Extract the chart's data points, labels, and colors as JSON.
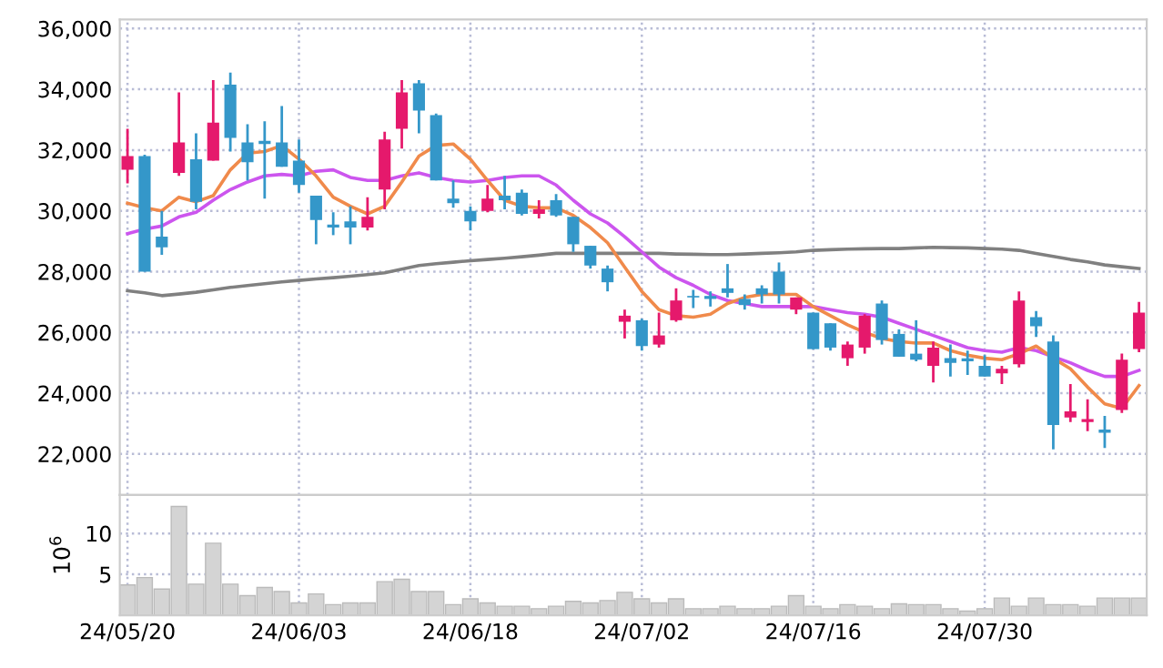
{
  "chart_data": [
    {
      "type": "candlestick",
      "categories": [
        null,
        null,
        null,
        null,
        null,
        null,
        null,
        null,
        null,
        null,
        null,
        null,
        null,
        null,
        null,
        null,
        null,
        null,
        null,
        null,
        null,
        null,
        null,
        null,
        null,
        null,
        null,
        null,
        null,
        null,
        null,
        null,
        null,
        null,
        null,
        null,
        null,
        null,
        null,
        null,
        null,
        null,
        null,
        null,
        null,
        null,
        null,
        null,
        null,
        null,
        null,
        null,
        null,
        null,
        null,
        null,
        null,
        null,
        null,
        null
      ],
      "ohlc": [
        [
          31350,
          32700,
          30900,
          31800
        ],
        [
          31800,
          31850,
          28000,
          28000
        ],
        [
          29150,
          30000,
          28550,
          28800
        ],
        [
          31250,
          33900,
          31150,
          32250
        ],
        [
          31700,
          32550,
          30050,
          30300
        ],
        [
          31650,
          34300,
          31650,
          32900
        ],
        [
          34150,
          34550,
          31950,
          32400
        ],
        [
          32250,
          32850,
          31000,
          31600
        ],
        [
          32250,
          32950,
          30400,
          32250
        ],
        [
          32250,
          33450,
          31450,
          31450
        ],
        [
          31650,
          32350,
          30600,
          30850
        ],
        [
          30500,
          30500,
          28900,
          29700
        ],
        [
          29500,
          29950,
          29200,
          29500
        ],
        [
          29650,
          30150,
          28900,
          29450
        ],
        [
          29450,
          30450,
          29350,
          29800
        ],
        [
          30700,
          32600,
          30050,
          32350
        ],
        [
          32700,
          34300,
          32050,
          33900
        ],
        [
          34200,
          34300,
          32550,
          33300
        ],
        [
          33150,
          33200,
          31000,
          31000
        ],
        [
          30400,
          31000,
          30100,
          30250
        ],
        [
          30000,
          30150,
          29350,
          29650
        ],
        [
          30000,
          30850,
          29950,
          30400
        ],
        [
          30500,
          31150,
          30050,
          30350
        ],
        [
          30600,
          30700,
          29850,
          29900
        ],
        [
          29900,
          30350,
          29750,
          30050
        ],
        [
          30350,
          30550,
          29800,
          29850
        ],
        [
          29800,
          29800,
          28650,
          28900
        ],
        [
          28850,
          28850,
          28100,
          28200
        ],
        [
          28100,
          28200,
          27350,
          27650
        ],
        [
          26350,
          26750,
          25800,
          26550
        ],
        [
          26400,
          26450,
          25400,
          25550
        ],
        [
          25600,
          26650,
          25500,
          25900
        ],
        [
          26400,
          27450,
          26350,
          27050
        ],
        [
          27200,
          27400,
          26800,
          27150
        ],
        [
          27200,
          27350,
          26850,
          27100
        ],
        [
          27450,
          28250,
          27150,
          27300
        ],
        [
          27100,
          27250,
          26750,
          26900
        ],
        [
          27450,
          27550,
          26950,
          27250
        ],
        [
          28000,
          28300,
          26950,
          27250
        ],
        [
          26750,
          27150,
          26600,
          27150
        ],
        [
          26650,
          26650,
          25450,
          25450
        ],
        [
          26300,
          26300,
          25400,
          25500
        ],
        [
          25150,
          25700,
          24900,
          25600
        ],
        [
          25500,
          26600,
          25300,
          26550
        ],
        [
          26950,
          27050,
          25600,
          25750
        ],
        [
          25950,
          26100,
          25200,
          25200
        ],
        [
          25300,
          26400,
          25050,
          25100
        ],
        [
          24900,
          25700,
          24350,
          25500
        ],
        [
          25150,
          25600,
          24550,
          25000
        ],
        [
          25100,
          25400,
          24600,
          25100
        ],
        [
          24900,
          25250,
          24550,
          24550
        ],
        [
          24650,
          24900,
          24300,
          24800
        ],
        [
          24950,
          27350,
          24850,
          27050
        ],
        [
          26500,
          26700,
          25850,
          26200
        ],
        [
          25700,
          25900,
          22150,
          22950
        ],
        [
          23200,
          24300,
          23050,
          23400
        ],
        [
          23050,
          23800,
          22750,
          23150
        ],
        [
          22750,
          23250,
          22200,
          22750
        ],
        [
          23450,
          25300,
          23350,
          25100
        ],
        [
          25450,
          27000,
          25350,
          26650
        ]
      ],
      "colors": [
        "#e5196c",
        "#3497c9",
        "#3497c9",
        "#e5196c",
        "#3497c9",
        "#e5196c",
        "#3497c9",
        "#3497c9",
        "#3497c9",
        "#3497c9",
        "#3497c9",
        "#3497c9",
        "#3497c9",
        "#3497c9",
        "#e5196c",
        "#e5196c",
        "#e5196c",
        "#3497c9",
        "#3497c9",
        "#3497c9",
        "#3497c9",
        "#e5196c",
        "#3497c9",
        "#3497c9",
        "#e5196c",
        "#3497c9",
        "#3497c9",
        "#3497c9",
        "#3497c9",
        "#e5196c",
        "#3497c9",
        "#e5196c",
        "#e5196c",
        "#3497c9",
        "#3497c9",
        "#3497c9",
        "#3497c9",
        "#3497c9",
        "#3497c9",
        "#e5196c",
        "#3497c9",
        "#3497c9",
        "#e5196c",
        "#e5196c",
        "#3497c9",
        "#3497c9",
        "#3497c9",
        "#e5196c",
        "#3497c9",
        "#3497c9",
        "#3497c9",
        "#e5196c",
        "#e5196c",
        "#3497c9",
        "#3497c9",
        "#e5196c",
        "#e5196c",
        "#3497c9",
        "#e5196c",
        "#e5196c"
      ],
      "series": [
        {
          "type": "line",
          "color": "#808080",
          "values": [
            27370,
            27300,
            27210,
            27260,
            27320,
            27400,
            27480,
            27540,
            27600,
            27660,
            27710,
            27760,
            27800,
            27850,
            27900,
            27960,
            28080,
            28200,
            28260,
            28310,
            28360,
            28400,
            28440,
            28490,
            28540,
            28600,
            28600,
            28600,
            28600,
            28600,
            28600,
            28600,
            28580,
            28570,
            28560,
            28560,
            28580,
            28600,
            28620,
            28650,
            28700,
            28720,
            28740,
            28750,
            28760,
            28760,
            28780,
            28800,
            28790,
            28780,
            28760,
            28740,
            28700,
            28600,
            28500,
            28400,
            28320,
            28220,
            28160,
            28100
          ]
        },
        {
          "type": "line",
          "color": "#cc55ee",
          "values": [
            29250,
            29400,
            29500,
            29800,
            29950,
            30350,
            30700,
            30950,
            31150,
            31200,
            31150,
            31300,
            31350,
            31100,
            31000,
            31000,
            31150,
            31250,
            31100,
            31000,
            30950,
            31000,
            31100,
            31150,
            31150,
            30850,
            30350,
            29900,
            29600,
            29150,
            28650,
            28150,
            27800,
            27550,
            27250,
            27050,
            26950,
            26850,
            26850,
            26850,
            26850,
            26750,
            26650,
            26600,
            26500,
            26300,
            26100,
            25900,
            25700,
            25500,
            25400,
            25350,
            25500,
            25400,
            25200,
            25000,
            24750,
            24550,
            24550,
            24750
          ]
        },
        {
          "type": "line",
          "color": "#f08a4b",
          "values": [
            30250,
            30100,
            30000,
            30450,
            30300,
            30500,
            31350,
            31900,
            31950,
            32150,
            31700,
            31150,
            30450,
            30150,
            29900,
            30150,
            30950,
            31800,
            32150,
            32200,
            31700,
            31000,
            30350,
            30150,
            30100,
            30100,
            29850,
            29450,
            28950,
            28150,
            27350,
            26750,
            26550,
            26500,
            26600,
            26950,
            27150,
            27250,
            27250,
            27250,
            26850,
            26550,
            26250,
            26000,
            25800,
            25700,
            25650,
            25650,
            25400,
            25250,
            25150,
            25100,
            25300,
            25550,
            25150,
            24800,
            24200,
            23650,
            23500,
            24250
          ]
        }
      ],
      "ylim": [
        20650,
        36300
      ],
      "yticks": [
        {
          "value": 22000,
          "label": "22,000"
        },
        {
          "value": 24000,
          "label": "24,000"
        },
        {
          "value": 26000,
          "label": "26,000"
        },
        {
          "value": 28000,
          "label": "28,000"
        },
        {
          "value": 30000,
          "label": "30,000"
        },
        {
          "value": 32000,
          "label": "32,000"
        },
        {
          "value": 34000,
          "label": "34,000"
        },
        {
          "value": 36000,
          "label": "36,000"
        }
      ],
      "grid": true,
      "tick_labels": "y"
    },
    {
      "type": "bar",
      "categories": [
        "24/05/20",
        null,
        null,
        null,
        null,
        null,
        null,
        null,
        null,
        null,
        "24/06/03",
        null,
        null,
        null,
        null,
        null,
        null,
        null,
        null,
        null,
        "24/06/18",
        null,
        null,
        null,
        null,
        null,
        null,
        null,
        null,
        null,
        "24/07/02",
        null,
        null,
        null,
        null,
        null,
        null,
        null,
        null,
        null,
        "24/07/16",
        null,
        null,
        null,
        null,
        null,
        null,
        null,
        null,
        null,
        "24/07/30",
        null,
        null,
        null,
        null,
        null,
        null,
        null,
        null,
        null
      ],
      "values": [
        3.7,
        4.6,
        3.2,
        13.3,
        3.8,
        8.8,
        3.8,
        2.4,
        3.4,
        2.9,
        1.5,
        2.6,
        1.3,
        1.5,
        1.5,
        4.1,
        4.4,
        2.9,
        2.9,
        1.3,
        2.0,
        1.5,
        1.1,
        1.1,
        0.8,
        1.1,
        1.7,
        1.5,
        1.8,
        2.8,
        2.0,
        1.5,
        2.0,
        0.8,
        0.8,
        1.1,
        0.8,
        0.8,
        1.1,
        2.4,
        1.1,
        0.8,
        1.3,
        1.1,
        0.8,
        1.4,
        1.3,
        1.3,
        0.8,
        0.5,
        0.8,
        2.1,
        1.1,
        2.1,
        1.3,
        1.3,
        1.1,
        2.1,
        2.1,
        2.1
      ],
      "color": "#d4d4d4",
      "ylabel": "10$^{6}$",
      "ylim": [
        0,
        14.7
      ],
      "yticks": [
        5,
        10
      ],
      "grid": true
    }
  ]
}
